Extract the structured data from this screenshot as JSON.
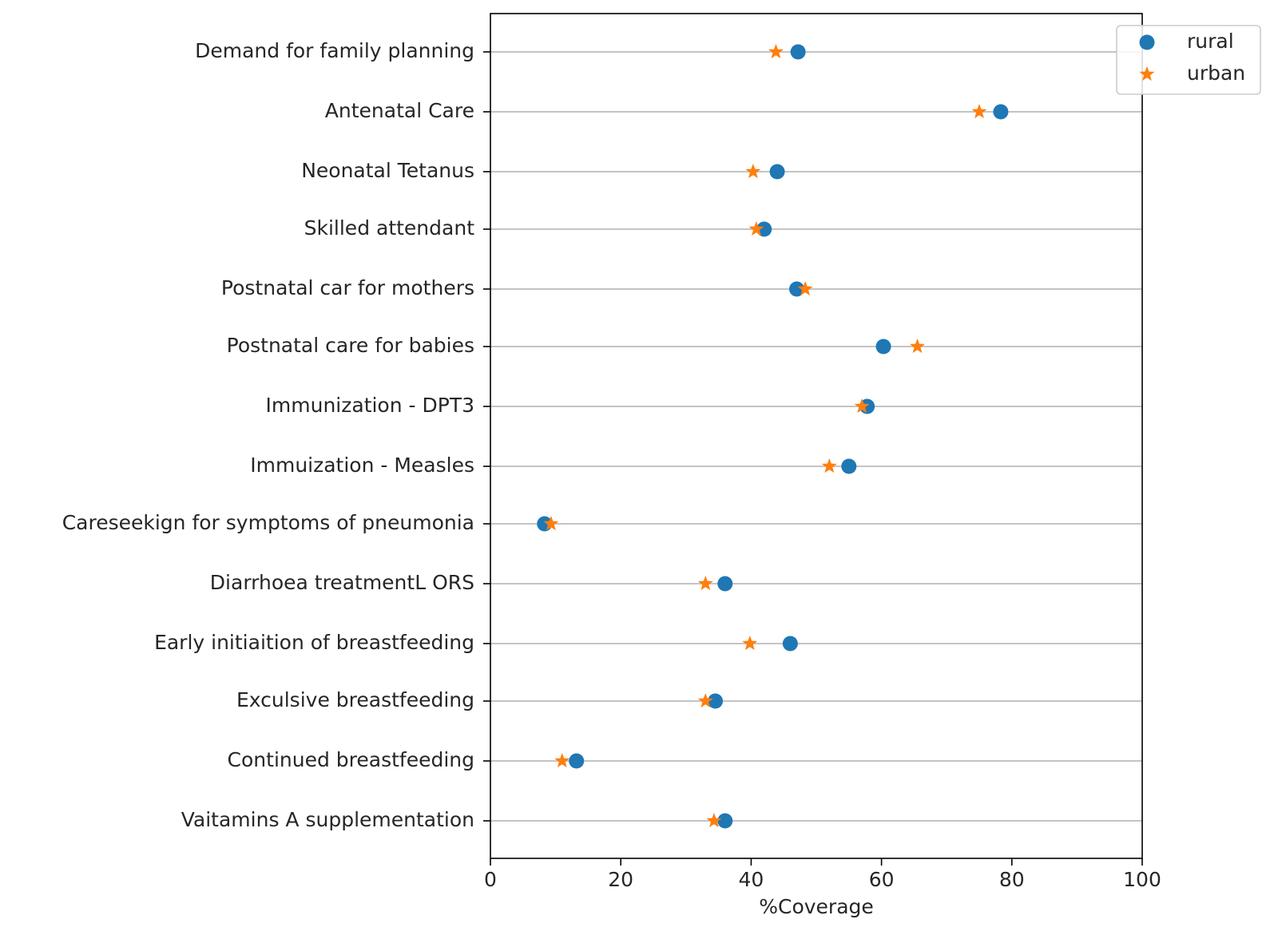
{
  "chart_data": {
    "type": "scatter",
    "title": "",
    "xlabel": "%Coverage",
    "ylabel": "",
    "xlim": [
      0,
      100
    ],
    "xticks": [
      "0",
      "20",
      "40",
      "60",
      "80",
      "100"
    ],
    "grid": "horizontal",
    "legend_position": "top-right",
    "categories": [
      "Demand for family planning",
      "Antenatal Care",
      "Neonatal Tetanus ",
      "Skilled attendant ",
      "Postnatal car for mothers",
      "Postnatal care for babies",
      "Immunization - DPT3",
      "Immuization - Measles",
      "Careseekign for symptoms of pneumonia",
      "Diarrhoea treatmentL ORS",
      "Early initiaition of breastfeeding",
      "Exculsive breastfeeding",
      "Continued breastfeeding",
      "Vaitamins A supplementation"
    ],
    "series": [
      {
        "name": "rural",
        "marker": "circle",
        "color": "#1f77b4",
        "values": [
          47.2,
          78.3,
          44.0,
          42.0,
          47.0,
          60.3,
          57.8,
          55.0,
          8.3,
          36.0,
          46.0,
          34.5,
          13.2,
          36.0
        ]
      },
      {
        "name": "urban",
        "marker": "star",
        "color": "#ff7f0e",
        "values": [
          43.8,
          75.0,
          40.3,
          40.8,
          48.3,
          65.5,
          57.0,
          52.0,
          9.3,
          33.0,
          39.8,
          33.0,
          11.0,
          34.3
        ]
      }
    ]
  }
}
